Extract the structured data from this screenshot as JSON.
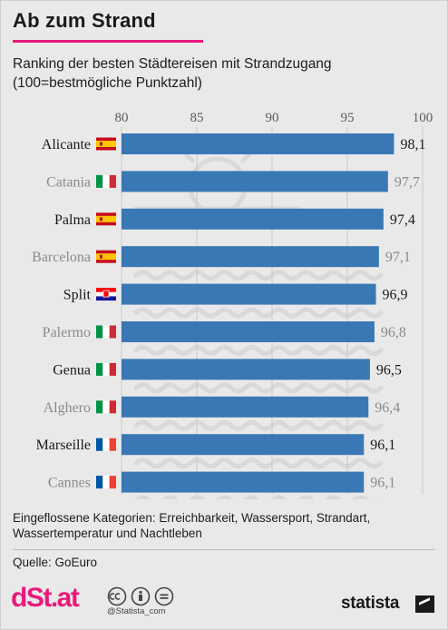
{
  "header": {
    "title": "Ab zum Strand",
    "subtitle": "Ranking der besten Städtereisen mit Strandzugang (100=bestmögliche Punktzahl)"
  },
  "footer": {
    "note": "Eingeflossene Kategorien: Erreichbarkeit, Wassersport, Strandart, Wassertemperatur und Nachtleben",
    "source": "Quelle: GoEuro",
    "brand_left": "dSt.at",
    "handle": "@Statista_com",
    "brand_right": "statista"
  },
  "colors": {
    "bar": "#3a78b5",
    "accent": "#e8197d",
    "background": "#e9e9e9"
  },
  "chart_data": {
    "type": "bar",
    "orientation": "horizontal",
    "categories": [
      "Alicante",
      "Catania",
      "Palma",
      "Barcelona",
      "Split",
      "Palermo",
      "Genua",
      "Alghero",
      "Marseille",
      "Cannes"
    ],
    "flags": [
      "spain",
      "italy",
      "spain",
      "spain",
      "croatia",
      "italy",
      "italy",
      "italy",
      "france",
      "france"
    ],
    "values": [
      98.1,
      97.7,
      97.4,
      97.1,
      96.9,
      96.8,
      96.5,
      96.4,
      96.1,
      96.1
    ],
    "value_labels": [
      "98,1",
      "97,7",
      "97,4",
      "97,1",
      "96,9",
      "96,8",
      "96,5",
      "96,4",
      "96,1",
      "96,1"
    ],
    "xlim": [
      80,
      100
    ],
    "ticks": [
      80,
      85,
      90,
      95,
      100
    ],
    "tick_labels": [
      "80",
      "85",
      "90",
      "95",
      "100"
    ],
    "axis_position": "top",
    "grid": true
  }
}
